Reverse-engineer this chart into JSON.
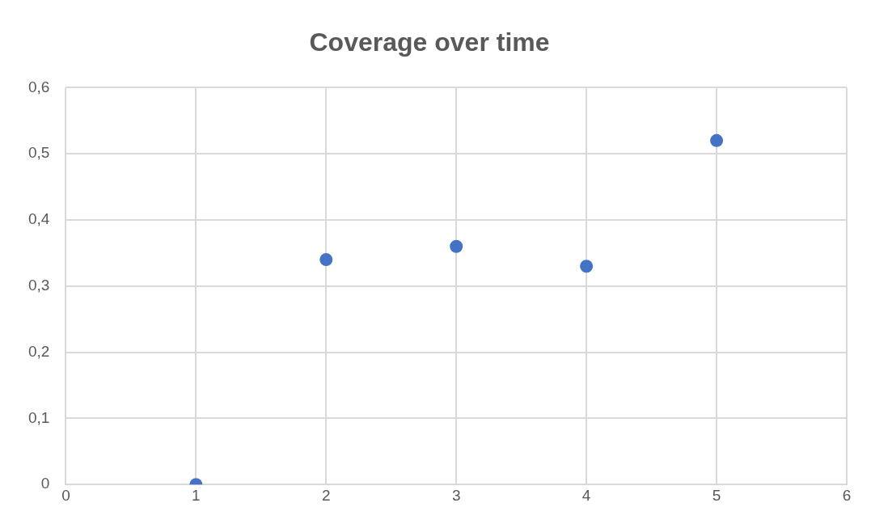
{
  "chart_data": {
    "type": "scatter",
    "title": "Coverage over time",
    "x": [
      1,
      2,
      3,
      4,
      5
    ],
    "series": [
      {
        "color": "#4472c4",
        "values": [
          0,
          0.34,
          0.36,
          0.33,
          0.52
        ]
      }
    ],
    "xlim": [
      0,
      6
    ],
    "xticks": [
      0,
      1,
      2,
      3,
      4,
      5,
      6
    ],
    "ylim": [
      0,
      0.6
    ],
    "yticks": [
      0,
      {
        "value": 0.1,
        "label": "0,1"
      },
      {
        "value": 0.2,
        "label": "0,2"
      },
      {
        "value": 0.3,
        "label": "0,3"
      },
      {
        "value": 0.4,
        "label": "0,4"
      },
      {
        "value": 0.5,
        "label": "0,5"
      },
      {
        "value": 0.6,
        "label": "0,6"
      }
    ],
    "grid": true,
    "legend": false,
    "marker": "circle"
  }
}
